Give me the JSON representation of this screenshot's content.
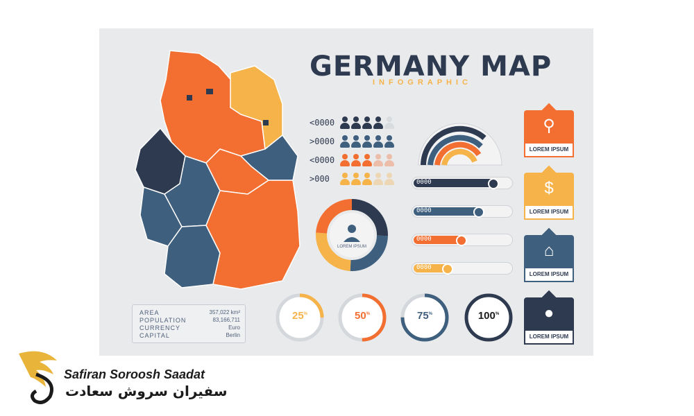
{
  "infographic": {
    "title": "GERMANY MAP",
    "subtitle": "INFOGRAPHIC"
  },
  "population_rows": [
    {
      "label": "<0000",
      "color": "#2e3a50",
      "count": 4
    },
    {
      "label": ">0000",
      "color": "#3e5f7d",
      "count": 5
    },
    {
      "label": "<0000",
      "color": "#f26f31",
      "count": 3
    },
    {
      "label": ">000",
      "color": "#f6b34a",
      "count": 3
    }
  ],
  "bars": [
    {
      "label": "0000",
      "color": "#2e3a50",
      "value": 0.85
    },
    {
      "label": "0000",
      "color": "#3e5f7d",
      "value": 0.7
    },
    {
      "label": "0000",
      "color": "#f26f31",
      "value": 0.52
    },
    {
      "label": "0000",
      "color": "#f6b34a",
      "value": 0.38
    }
  ],
  "donut": {
    "label": "LOREM IPSUM"
  },
  "percent_rings": [
    {
      "label": "25",
      "suffix": "%",
      "value": 0.25,
      "color": "#f6b34a"
    },
    {
      "label": "50",
      "suffix": "%",
      "value": 0.5,
      "color": "#f26f31"
    },
    {
      "label": "75",
      "suffix": "%",
      "value": 0.75,
      "color": "#3e5f7d"
    },
    {
      "label": "100",
      "suffix": "%",
      "value": 1.0,
      "color": "#2e3a50"
    }
  ],
  "cards": [
    {
      "label": "LOREM IPSUM",
      "icon": "location-pin-icon",
      "color": "#f26f31"
    },
    {
      "label": "LOREM IPSUM",
      "icon": "dollar-icon",
      "color": "#f6b34a"
    },
    {
      "label": "LOREM IPSUM",
      "icon": "home-icon",
      "color": "#3e5f7d"
    },
    {
      "label": "LOREM IPSUM",
      "icon": "user-icon",
      "color": "#2e3a50"
    }
  ],
  "info_box": {
    "area_key": "AREA",
    "area_val": "357,022 km²",
    "population_key": "POPULATION",
    "population_val": "83,166,711",
    "currency_key": "CURRENCY",
    "currency_val": "Euro",
    "capital_key": "CAPITAL",
    "capital_val": "Berlin"
  },
  "brand": {
    "name_en": "Safiran Soroosh Saadat",
    "name_fa": "سفیران سروش سعادت"
  },
  "colors": {
    "navy": "#2e3a50",
    "steel": "#3e5f7d",
    "orange": "#f26f31",
    "yellow": "#f6b34a",
    "gold": "#e9b43a"
  }
}
